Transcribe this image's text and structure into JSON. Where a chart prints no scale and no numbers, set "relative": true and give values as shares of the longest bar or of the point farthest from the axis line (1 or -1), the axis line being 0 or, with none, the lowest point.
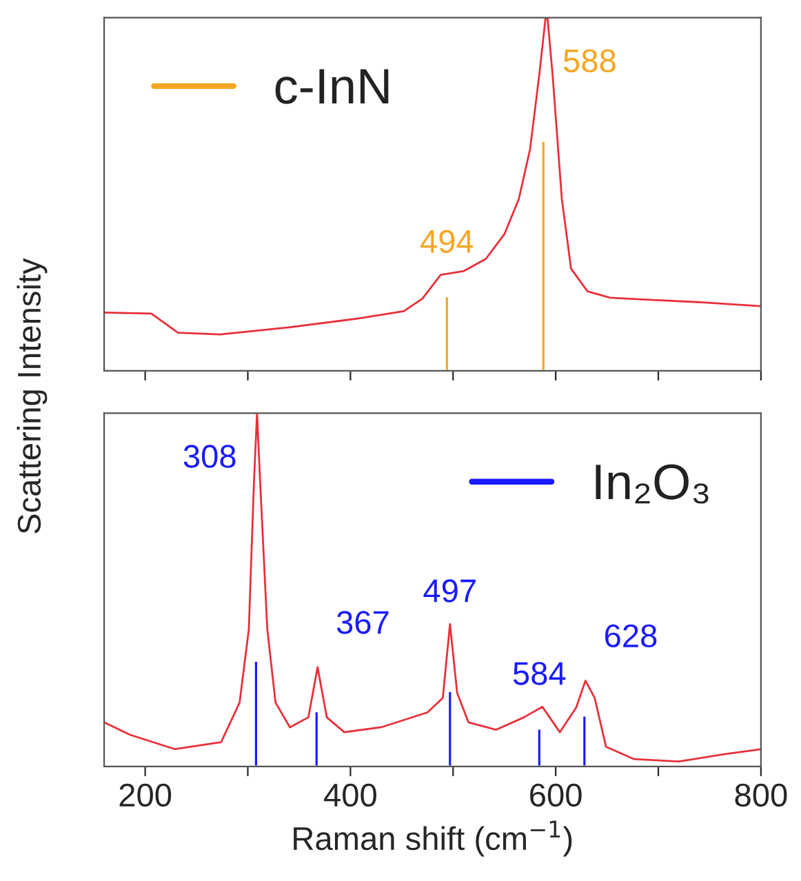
{
  "chart_data": [
    {
      "type": "line",
      "relative": true,
      "ylabel": "Scattering Intensity",
      "xlim": [
        160,
        800
      ],
      "tick_labels": false,
      "legend": "top left",
      "grid": false,
      "marker": "none",
      "xticks": [
        200,
        300,
        400,
        500,
        600,
        700,
        800
      ],
      "series": [
        {
          "color": "#e8303a",
          "x": [
            160,
            206,
            232,
            273,
            340,
            407,
            452,
            470,
            488,
            510,
            532,
            550,
            564,
            575,
            584,
            590,
            592,
            597,
            606,
            615,
            631,
            653,
            698,
            743,
            800
          ],
          "values": [
            0.165,
            0.162,
            0.108,
            0.103,
            0.123,
            0.148,
            0.169,
            0.204,
            0.272,
            0.282,
            0.317,
            0.387,
            0.486,
            0.627,
            0.838,
            0.996,
            1.0,
            0.838,
            0.486,
            0.289,
            0.225,
            0.207,
            0.2,
            0.194,
            0.183
          ]
        },
        {
          "type": "bar",
          "name": "c-InN",
          "color": "#f5a623",
          "x": [
            494,
            588
          ],
          "values": [
            0.211,
            0.651
          ]
        }
      ],
      "annotations": [
        "494",
        "588"
      ]
    },
    {
      "type": "line",
      "relative": true,
      "xlabel": "Raman shift (cm$^{−1}$)",
      "xlim": [
        160,
        800
      ],
      "tick_labels": "x",
      "legend": "top right",
      "grid": false,
      "marker": "none",
      "xticks": [
        {
          "value": 200,
          "label": "200"
        },
        {
          "value": 300,
          "label": null
        },
        {
          "value": 400,
          "label": "400"
        },
        {
          "value": 500,
          "label": null
        },
        {
          "value": 600,
          "label": "600"
        },
        {
          "value": 700,
          "label": null
        },
        {
          "value": 800,
          "label": "800"
        }
      ],
      "series": [
        {
          "color": "#e8303a",
          "x": [
            160,
            185,
            229,
            274,
            292,
            301,
            306,
            309,
            312,
            319,
            327,
            341,
            359,
            368,
            377,
            394,
            430,
            475,
            490,
            497,
            504,
            515,
            542,
            569,
            587,
            604,
            620,
            629,
            638,
            649,
            676,
            720,
            765,
            800
          ],
          "values": [
            0.125,
            0.09,
            0.049,
            0.069,
            0.181,
            0.389,
            0.806,
            1.0,
            0.806,
            0.389,
            0.181,
            0.111,
            0.139,
            0.281,
            0.139,
            0.097,
            0.111,
            0.153,
            0.194,
            0.403,
            0.208,
            0.125,
            0.104,
            0.139,
            0.169,
            0.097,
            0.167,
            0.243,
            0.194,
            0.056,
            0.021,
            0.014,
            0.035,
            0.049
          ]
        },
        {
          "type": "bar",
          "name": "In₂O₃",
          "color": "#1a1aff",
          "x": [
            308,
            367,
            497,
            584,
            628
          ],
          "values": [
            0.299,
            0.156,
            0.213,
            0.107,
            0.144
          ]
        }
      ],
      "annotations": [
        "308",
        "367",
        "497",
        "584",
        "628"
      ]
    }
  ]
}
